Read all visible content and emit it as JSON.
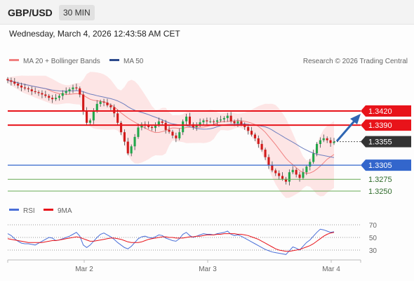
{
  "header": {
    "symbol": "GBP/USD",
    "timeframe": "30 MIN",
    "datetime": "Wednesday, March 4, 2026 12:43:58 AM CET"
  },
  "legend": {
    "bollinger_label": "MA 20 + Bollinger Bands",
    "ma50_label": "MA 50",
    "credit": "Research © 2026 Trading Central"
  },
  "indicator": {
    "rsi_label": "RSI",
    "ma9_label": "9MA",
    "rsi_levels": [
      "70",
      "50",
      "30"
    ]
  },
  "colors": {
    "resistance": "#e8131a",
    "support": "#3366cc",
    "target": "#66aa55",
    "last_price": "#333333",
    "candle_up": "#22a64a",
    "candle_down": "#d11a1a",
    "bollinger_fill": "#fde1e1",
    "ma20": "#f08080",
    "ma50": "#6f7fbf",
    "rsi": "#4a6fd8",
    "rsi_ma9": "#e8131a",
    "arrow": "#2f66b3"
  },
  "chart_data": {
    "type": "candlestick",
    "price_axis_ticks": [
      "1.3420",
      "1.3390",
      "1.3355",
      "1.3305",
      "1.3275",
      "1.3250"
    ],
    "x_labels": [
      "Mar 2",
      "Mar 3",
      "Mar 4"
    ],
    "levels": [
      {
        "name": "resistance-2",
        "value": 1.342,
        "label": "1.3420",
        "kind": "resistance"
      },
      {
        "name": "resistance-1",
        "value": 1.339,
        "label": "1.3390",
        "kind": "resistance"
      },
      {
        "name": "last-price",
        "value": 1.3355,
        "label": "1.3355",
        "kind": "last"
      },
      {
        "name": "pivot",
        "value": 1.3305,
        "label": "1.3305",
        "kind": "pivot"
      },
      {
        "name": "support-1",
        "value": 1.3275,
        "label": "1.3275",
        "kind": "support"
      },
      {
        "name": "support-2",
        "value": 1.325,
        "label": "1.3250",
        "kind": "support"
      }
    ],
    "close_series": [
      1.3485,
      1.3482,
      1.3478,
      1.3474,
      1.347,
      1.3468,
      1.3466,
      1.3462,
      1.346,
      1.3458,
      1.3455,
      1.3452,
      1.3448,
      1.3445,
      1.3448,
      1.3452,
      1.3458,
      1.3462,
      1.3466,
      1.347,
      1.3468,
      1.3455,
      1.342,
      1.3395,
      1.34,
      1.342,
      1.3435,
      1.344,
      1.3438,
      1.3432,
      1.3428,
      1.3415,
      1.3395,
      1.3375,
      1.3355,
      1.333,
      1.3345,
      1.3365,
      1.3385,
      1.3392,
      1.339,
      1.3386,
      1.3384,
      1.339,
      1.3398,
      1.3395,
      1.338,
      1.3376,
      1.3368,
      1.3362,
      1.3375,
      1.3398,
      1.3408,
      1.3392,
      1.3386,
      1.339,
      1.3396,
      1.34,
      1.3398,
      1.3398,
      1.3397,
      1.34,
      1.3402,
      1.3405,
      1.341,
      1.3398,
      1.3394,
      1.3398,
      1.3392,
      1.3386,
      1.3378,
      1.337,
      1.3362,
      1.335,
      1.3338,
      1.3322,
      1.3305,
      1.3294,
      1.3288,
      1.3282,
      1.3276,
      1.327,
      1.329,
      1.3295,
      1.3285,
      1.3278,
      1.329,
      1.3302,
      1.3312,
      1.333,
      1.335,
      1.3358,
      1.3362,
      1.3358,
      1.3352,
      1.3355
    ],
    "rsi": {
      "ylim": [
        20,
        80
      ],
      "levels": [
        70,
        50,
        30
      ],
      "values": [
        56,
        53,
        48,
        44,
        41,
        40,
        40,
        39,
        38,
        41,
        44,
        47,
        50,
        49,
        45,
        46,
        48,
        50,
        52,
        55,
        58,
        52,
        38,
        34,
        38,
        44,
        50,
        55,
        57,
        54,
        51,
        47,
        42,
        38,
        34,
        32,
        36,
        42,
        48,
        51,
        52,
        50,
        49,
        51,
        54,
        53,
        49,
        47,
        45,
        44,
        48,
        55,
        58,
        53,
        50,
        52,
        54,
        56,
        55,
        55,
        54,
        56,
        57,
        58,
        60,
        55,
        53,
        54,
        52,
        49,
        46,
        43,
        40,
        37,
        34,
        31,
        29,
        27,
        26,
        25,
        24,
        23,
        29,
        35,
        33,
        30,
        36,
        42,
        46,
        52,
        58,
        63,
        62,
        60,
        58,
        59
      ],
      "ma9": [
        48,
        47,
        46,
        45,
        44,
        43,
        42,
        42,
        42,
        42,
        42,
        43,
        44,
        45,
        45,
        46,
        47,
        48,
        49,
        50,
        51,
        50,
        48,
        46,
        44,
        44,
        45,
        46,
        47,
        48,
        49,
        49,
        48,
        47,
        45,
        43,
        42,
        42,
        42,
        43,
        45,
        47,
        48,
        49,
        50,
        51,
        51,
        50,
        50,
        49,
        49,
        49,
        50,
        51,
        51,
        52,
        52,
        53,
        54,
        54,
        54,
        55,
        55,
        56,
        56,
        56,
        56,
        55,
        55,
        54,
        53,
        51,
        49,
        47,
        44,
        41,
        38,
        35,
        32,
        30,
        29,
        28,
        28,
        29,
        30,
        31,
        33,
        35,
        37,
        40,
        44,
        48,
        52,
        55,
        57,
        58
      ]
    }
  }
}
